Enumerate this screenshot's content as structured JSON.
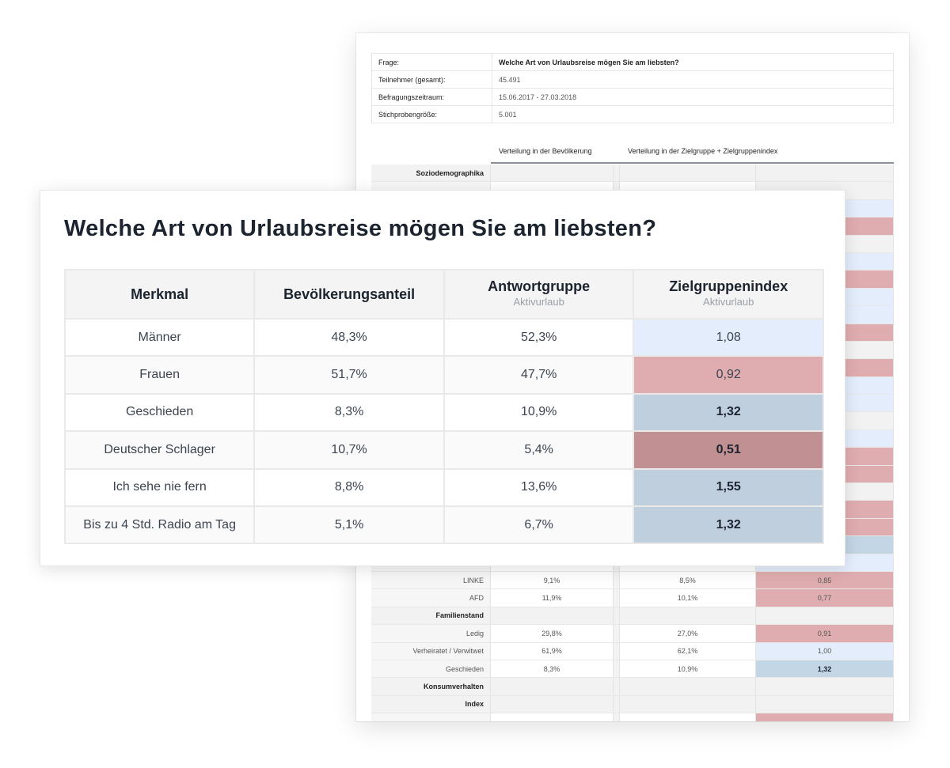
{
  "background_doc": {
    "meta": [
      {
        "key": "Frage:",
        "value": "Welche Art von Urlaubsreise mögen Sie am liebsten?"
      },
      {
        "key": "Teilnehmer (gesamt):",
        "value": "45.491"
      },
      {
        "key": "Befragungszeitraum:",
        "value": "15.06.2017 - 27.03.2018"
      },
      {
        "key": "Stichprobengröße:",
        "value": "5.001"
      }
    ],
    "col_head_population": "Verteilung in der Bevölkerung",
    "col_head_target": "Verteilung in der Zielgruppe + Zielgruppenindex",
    "rows": [
      {
        "label": "Soziodemographika",
        "section": true
      },
      {
        "index_color": "neutral"
      },
      {
        "index_color": "lightblue"
      },
      {
        "index_color": "red"
      },
      {
        "index_color": "neutral"
      },
      {
        "index_color": "lightblue"
      },
      {
        "index_color": "red"
      },
      {
        "index_color": "lightblue"
      },
      {
        "index_color": "lightblue"
      },
      {
        "index_color": "red"
      },
      {
        "index_color": "neutral"
      },
      {
        "index_color": "red"
      },
      {
        "index_color": "lightblue"
      },
      {
        "index_color": "lightblue"
      },
      {
        "index_color": "neutral"
      },
      {
        "index_color": "lightblue"
      },
      {
        "index_color": "red"
      },
      {
        "index_color": "red"
      },
      {
        "index_color": "neutral"
      },
      {
        "index_color": "red"
      },
      {
        "index_color": "red"
      },
      {
        "index_color": "blue"
      },
      {
        "index_color": "lightblue"
      },
      {
        "label": "LINKE",
        "population": "9,1%",
        "target": "8,5%",
        "index": "0,85",
        "index_color": "red"
      },
      {
        "label": "AFD",
        "population": "11,9%",
        "target": "10,1%",
        "index": "0,77",
        "index_color": "red"
      },
      {
        "label": "Familienstand",
        "section": true
      },
      {
        "label": "Ledig",
        "population": "29,8%",
        "target": "27,0%",
        "index": "0,91",
        "index_color": "red"
      },
      {
        "label": "Verheiratet / Verwitwet",
        "population": "61,9%",
        "target": "62,1%",
        "index": "1,00",
        "index_color": "lightblue"
      },
      {
        "label": "Geschieden",
        "population": "8,3%",
        "target": "10,9%",
        "index": "1,32",
        "index_color": "blue",
        "bold": true
      },
      {
        "label": "Konsumverhalten",
        "section": true
      },
      {
        "label": "Index",
        "section": true
      },
      {
        "index_color": "red"
      }
    ]
  },
  "colors": {
    "neutral": "#f2f2f2",
    "lightblue": "#e3edfb",
    "red": "#dfadb0",
    "blue": "#c3d6e6",
    "darkred": "#c09092",
    "blue_strong": "#bfcfdd"
  },
  "card": {
    "title": "Welche Art von Urlaubsreise mögen Sie am liebsten?",
    "headers": [
      {
        "label": "Merkmal"
      },
      {
        "label": "Bevölkerungsanteil"
      },
      {
        "label": "Antwortgruppe",
        "sub": "Aktivurlaub"
      },
      {
        "label": "Zielgruppenindex",
        "sub": "Aktivurlaub"
      }
    ],
    "rows": [
      {
        "merkmal": "Männer",
        "population": "48,3%",
        "answer": "52,3%",
        "index": "1,08",
        "index_color": "lightblue"
      },
      {
        "merkmal": "Frauen",
        "population": "51,7%",
        "answer": "47,7%",
        "index": "0,92",
        "index_color": "red"
      },
      {
        "merkmal": "Geschieden",
        "population": "8,3%",
        "answer": "10,9%",
        "index": "1,32",
        "index_color": "blue_strong",
        "bold": true
      },
      {
        "merkmal": "Deutscher Schlager",
        "population": "10,7%",
        "answer": "5,4%",
        "index": "0,51",
        "index_color": "darkred",
        "bold": true
      },
      {
        "merkmal": "Ich sehe nie fern",
        "population": "8,8%",
        "answer": "13,6%",
        "index": "1,55",
        "index_color": "blue_strong",
        "bold": true
      },
      {
        "merkmal": "Bis zu 4 Std. Radio am Tag",
        "population": "5,1%",
        "answer": "6,7%",
        "index": "1,32",
        "index_color": "blue_strong",
        "bold": true
      }
    ]
  }
}
